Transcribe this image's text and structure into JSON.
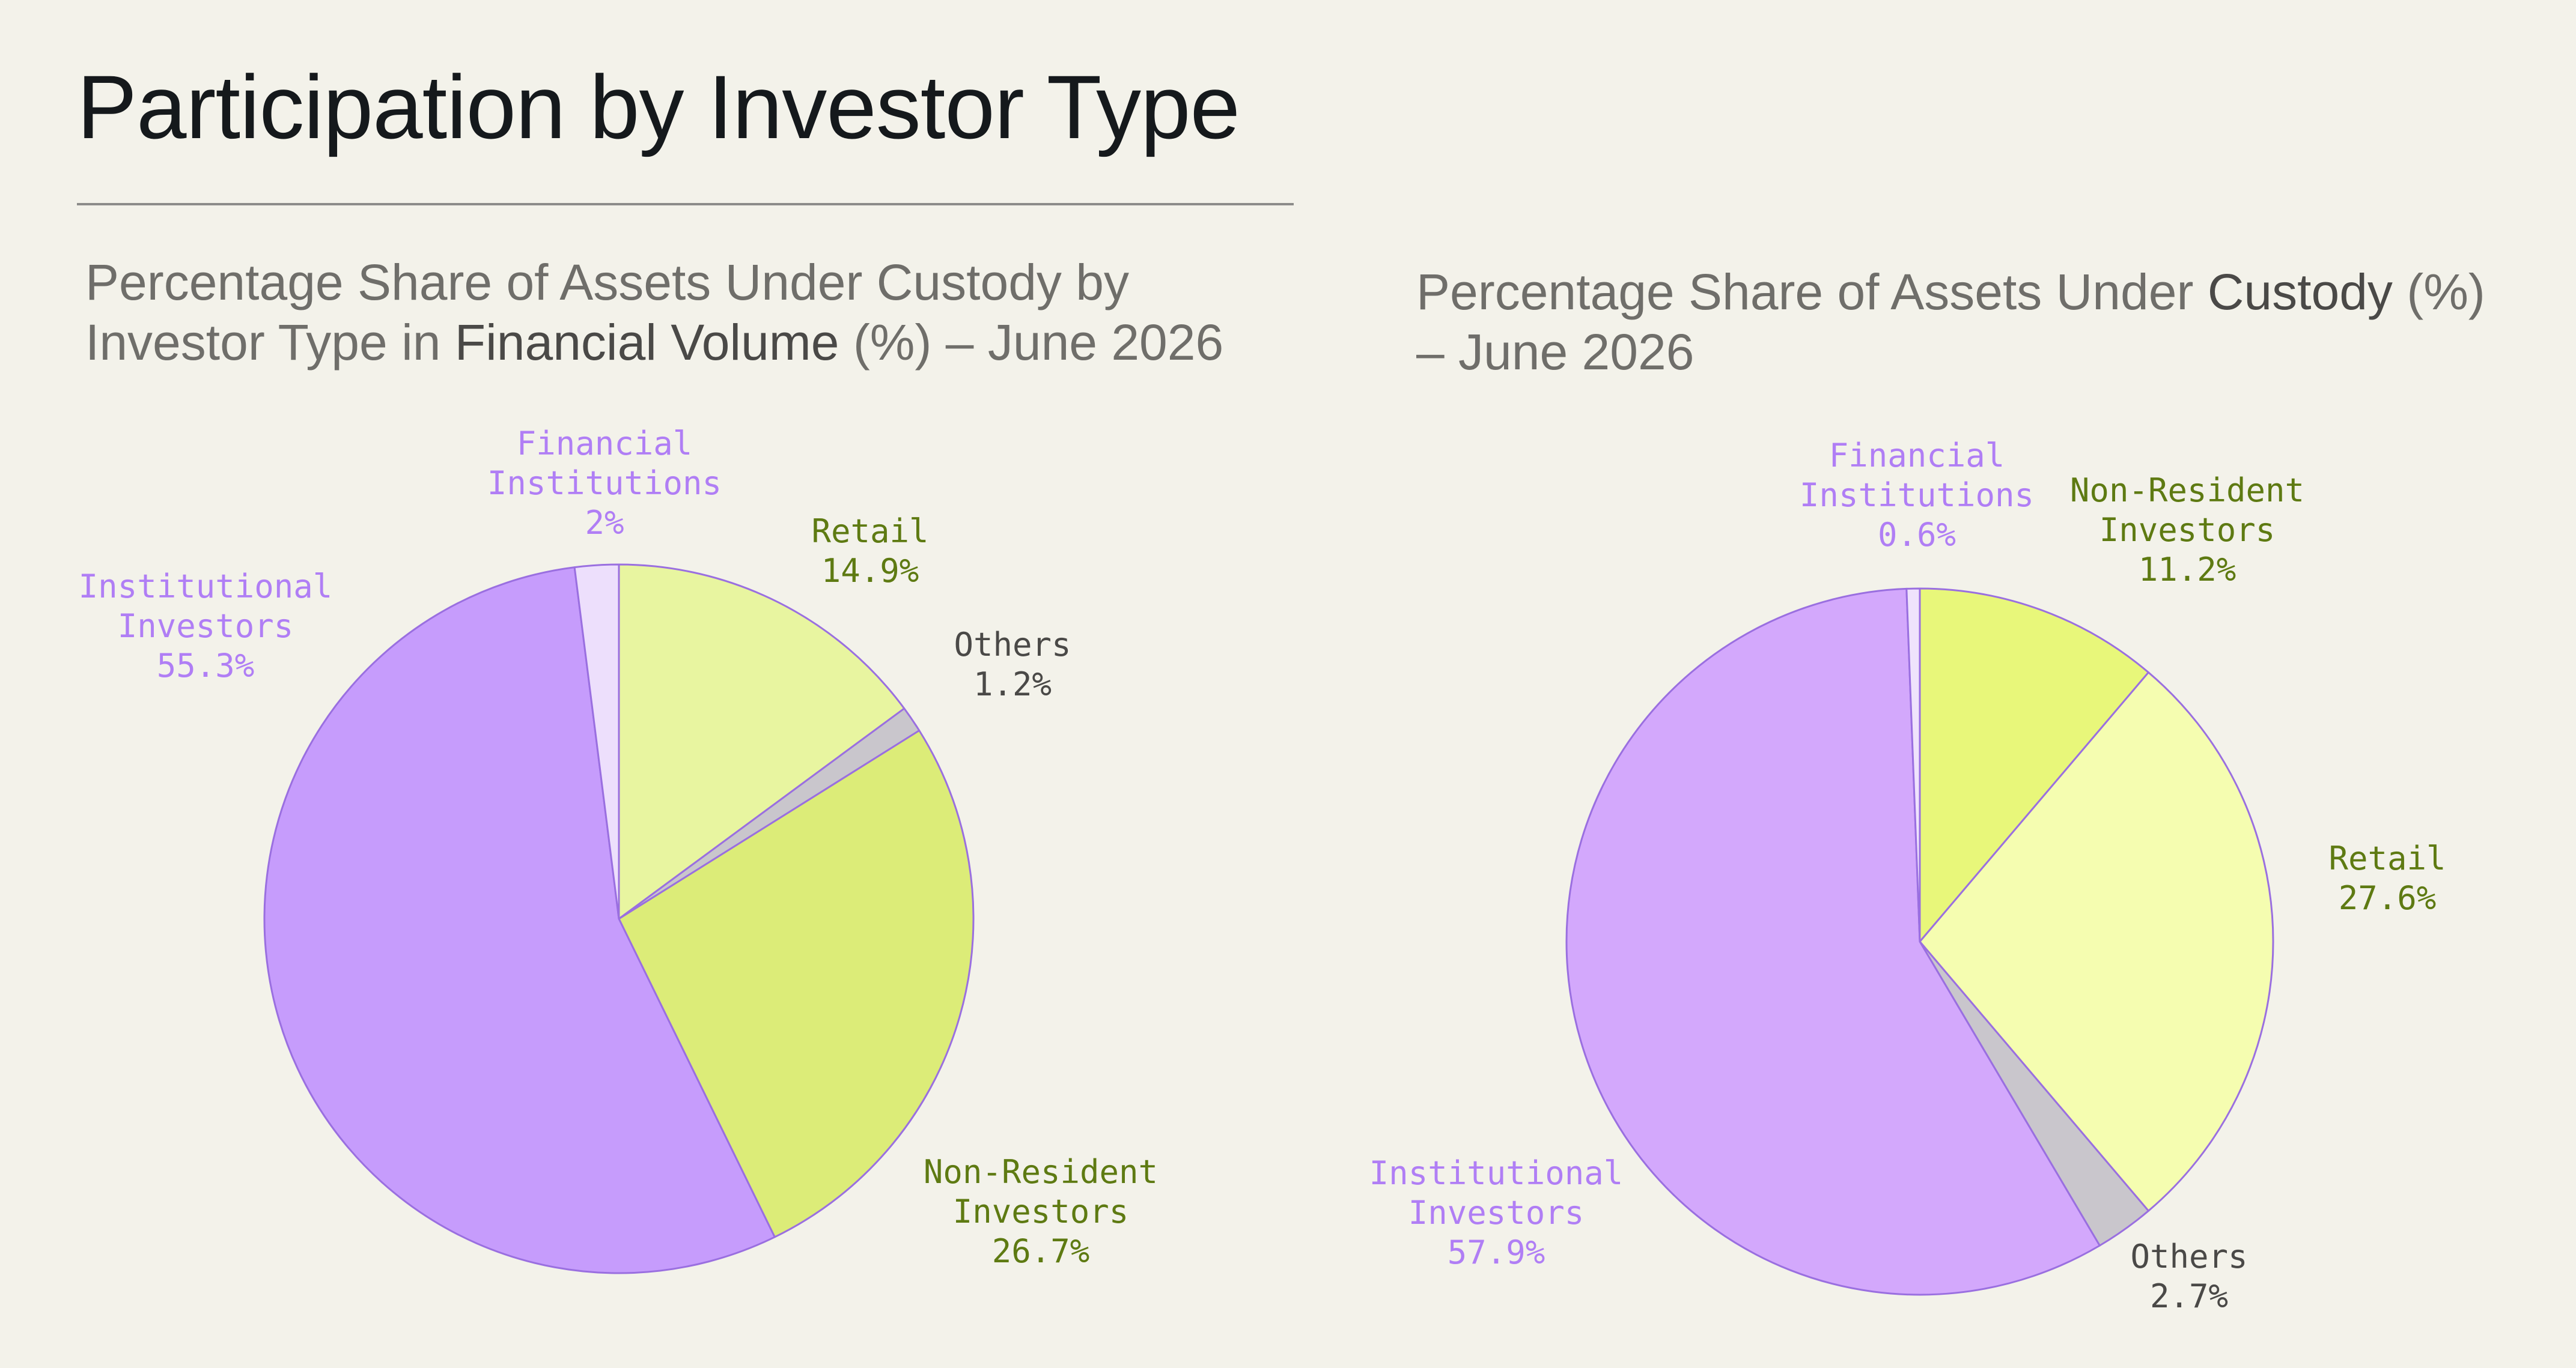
{
  "page_title": "Participation by Investor Type",
  "charts": [
    {
      "title_parts": {
        "line1": "Percentage Share of Assets Under Custody by",
        "line2_pre": "Investor Type in ",
        "line2_strong": "Financial Volume",
        "line2_post": " (%) – June 2026"
      }
    },
    {
      "title_parts": {
        "line1_pre": "Percentage Share of Assets Under ",
        "line1_strong": "Custody",
        "line1_post": " (%)",
        "line2": "– June 2026"
      }
    }
  ],
  "chart_data": [
    {
      "type": "pie",
      "title": "Percentage Share of Assets Under Custody by Investor Type in Financial Volume (%) – June 2026",
      "slices": [
        {
          "label_lines": [
            "Retail"
          ],
          "value": 14.9,
          "value_text": "14.9%",
          "color": "#e8f5a0",
          "label_color": "#5e7a12"
        },
        {
          "label_lines": [
            "Others"
          ],
          "value": 1.2,
          "value_text": "1.2%",
          "color": "#c9c6cc",
          "label_color": "#4a4947"
        },
        {
          "label_lines": [
            "Non-Resident",
            "Investors"
          ],
          "value": 26.7,
          "value_text": "26.7%",
          "color": "#dcec78",
          "label_color": "#5e7a12"
        },
        {
          "label_lines": [
            "Institutional",
            "Investors"
          ],
          "value": 55.3,
          "value_text": "55.3%",
          "color": "#c69cfc",
          "label_color": "#b07ef5"
        },
        {
          "label_lines": [
            "Financial",
            "Institutions"
          ],
          "value": 2,
          "value_text": "2%",
          "color": "#eddffc",
          "label_color": "#b07ef5"
        }
      ]
    },
    {
      "type": "pie",
      "title": "Percentage Share of Assets Under Custody (%) – June 2026",
      "slices": [
        {
          "label_lines": [
            "Non-Resident",
            "Investors"
          ],
          "value": 11.2,
          "value_text": "11.2%",
          "color": "#e8f77a",
          "label_color": "#5e7a12"
        },
        {
          "label_lines": [
            "Retail"
          ],
          "value": 27.6,
          "value_text": "27.6%",
          "color": "#f5fdb0",
          "label_color": "#5e7a12"
        },
        {
          "label_lines": [
            "Others"
          ],
          "value": 2.7,
          "value_text": "2.7%",
          "color": "#c9c6cc",
          "label_color": "#4a4947"
        },
        {
          "label_lines": [
            "Institutional",
            "Investors"
          ],
          "value": 57.9,
          "value_text": "57.9%",
          "color": "#d3a8fc",
          "label_color": "#b07ef5"
        },
        {
          "label_lines": [
            "Financial",
            "Institutions"
          ],
          "value": 0.6,
          "value_text": "0.6%",
          "color": "#efe3fc",
          "label_color": "#b07ef5"
        }
      ]
    }
  ]
}
